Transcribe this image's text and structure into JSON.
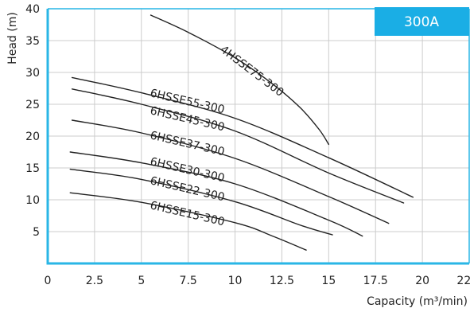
{
  "chart_data": {
    "type": "line",
    "title": "",
    "badge": "300A",
    "xlabel": "Capacity (m³/min)",
    "ylabel": "Head (m)",
    "xlim": [
      0,
      22.5
    ],
    "ylim": [
      0,
      40
    ],
    "xticks": [
      0,
      2.5,
      5,
      7.5,
      10,
      12.5,
      15,
      17.5,
      20,
      22.5
    ],
    "xtick_labels": [
      "0",
      "2.5",
      "5",
      "7.5",
      "10",
      "12.5",
      "15",
      "17.5",
      "20",
      "22.5"
    ],
    "yticks": [
      5,
      10,
      15,
      20,
      25,
      30,
      35,
      40
    ],
    "ytick_labels": [
      "5",
      "10",
      "15",
      "20",
      "25",
      "30",
      "35",
      "40"
    ],
    "grid": true,
    "colors": {
      "axis": "#29b6e6",
      "grid": "#cccccc",
      "curve": "#222222",
      "badge": "#1aaee5"
    },
    "series": [
      {
        "name": "4HSSE75-300",
        "x": [
          5.5,
          7.5,
          10,
          12,
          13.5,
          14.5,
          15
        ],
        "y": [
          39,
          36.3,
          32.3,
          28.2,
          24.4,
          21,
          18.7
        ]
      },
      {
        "name": "6HSSE55-300",
        "x": [
          1.3,
          5,
          10,
          15,
          19.5
        ],
        "y": [
          29.2,
          26.8,
          22.8,
          16.6,
          10.4
        ]
      },
      {
        "name": "6HSSE45-300",
        "x": [
          1.3,
          5,
          10,
          15,
          19
        ],
        "y": [
          27.4,
          25,
          20.8,
          14.2,
          9.5
        ]
      },
      {
        "name": "6HSSE37-300",
        "x": [
          1.3,
          5,
          10,
          15,
          18.2
        ],
        "y": [
          22.5,
          20.5,
          16.5,
          10.5,
          6.3
        ]
      },
      {
        "name": "6HSSE30-300",
        "x": [
          1.2,
          5,
          10,
          15,
          16.8
        ],
        "y": [
          17.5,
          15.8,
          12.5,
          6.8,
          4.3
        ]
      },
      {
        "name": "6HSSE22-300",
        "x": [
          1.2,
          5,
          10,
          13.5,
          15.2
        ],
        "y": [
          14.8,
          13.2,
          9.7,
          6,
          4.5
        ]
      },
      {
        "name": "6HSSE15-300",
        "x": [
          1.2,
          5,
          10,
          12,
          13.8
        ],
        "y": [
          11.1,
          9.6,
          6.4,
          4.3,
          2.1
        ]
      }
    ]
  }
}
